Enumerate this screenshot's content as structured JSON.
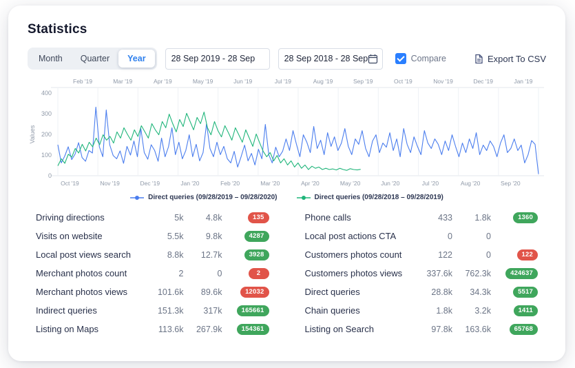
{
  "page": {
    "title": "Statistics"
  },
  "toolbar": {
    "period_tabs": [
      {
        "label": "Month",
        "selected": false
      },
      {
        "label": "Quarter",
        "selected": false
      },
      {
        "label": "Year",
        "selected": true
      }
    ],
    "date_range_primary": "28 Sep 2019 - 28 Sep",
    "date_range_compare": "28 Sep 2018 - 28 Sep",
    "compare_label": "Compare",
    "compare_checked": true,
    "export_label": "Export To CSV"
  },
  "colors": {
    "accent_blue": "#2f80ed",
    "series_current": "#4a7dee",
    "series_previous": "#1fb57a",
    "badge_positive": "#3fa65c",
    "badge_negative": "#e15449"
  },
  "chart_data": {
    "type": "line",
    "title": "",
    "xlabel": "",
    "ylabel": "Values",
    "ylim": [
      0,
      400
    ],
    "yticks": [
      0,
      100,
      200,
      300,
      400
    ],
    "grid": true,
    "legend_position": "bottom",
    "top_axis_labels": [
      "Feb '19",
      "Mar '19",
      "Apr '19",
      "May '19",
      "Jun '19",
      "Jul '19",
      "Aug '19",
      "Sep '19",
      "Oct '19",
      "Nov '19",
      "Dec '19",
      "Jan '19"
    ],
    "bottom_axis_labels": [
      "Oct '19",
      "Nov '19",
      "Dec '19",
      "Jan '20",
      "Feb '20",
      "Mar '20",
      "Apr '20",
      "May '20",
      "Jun '20",
      "Jul '20",
      "Aug '20",
      "Sep '20"
    ],
    "series": [
      {
        "name": "Direct queries (09/28/2019 – 09/28/2020)",
        "color": "#4a7dee",
        "span": 1.0,
        "values": [
          150,
          62,
          95,
          140,
          78,
          105,
          160,
          88,
          70,
          122,
          110,
          332,
          140,
          92,
          318,
          150,
          98,
          82,
          120,
          60,
          142,
          100,
          168,
          92,
          228,
          112,
          80,
          150,
          122,
          70,
          182,
          92,
          140,
          232,
          102,
          162,
          82,
          122,
          198,
          92,
          152,
          72,
          112,
          252,
          132,
          92,
          162,
          102,
          142,
          82,
          62,
          118,
          42,
          92,
          148,
          72,
          108,
          52,
          128,
          82,
          248,
          102,
          62,
          138,
          92,
          118,
          178,
          122,
          218,
          152,
          92,
          198,
          162,
          112,
          238,
          132,
          172,
          102,
          208,
          142,
          188,
          122,
          158,
          228,
          142,
          102,
          178,
          152,
          218,
          132,
          92,
          168,
          198,
          112,
          158,
          138,
          208,
          122,
          178,
          92,
          228,
          152,
          112,
          188,
          142,
          102,
          218,
          158,
          132,
          178,
          152,
          102,
          168,
          122,
          198,
          142,
          92,
          158,
          112,
          178,
          132,
          208,
          102,
          148,
          122,
          168,
          142,
          92,
          158,
          198,
          112,
          132,
          178,
          122,
          148,
          62,
          102,
          170,
          152,
          8
        ]
      },
      {
        "name": "Direct queries (09/28/2018 – 09/28/2019)",
        "color": "#1fb57a",
        "span": 0.63,
        "values": [
          48,
          82,
          60,
          104,
          90,
          132,
          110,
          152,
          120,
          162,
          140,
          182,
          150,
          198,
          172,
          190,
          158,
          212,
          182,
          232,
          200,
          172,
          222,
          190,
          242,
          212,
          182,
          252,
          222,
          198,
          262,
          232,
          298,
          252,
          212,
          272,
          238,
          302,
          262,
          222,
          282,
          252,
          308,
          232,
          198,
          262,
          218,
          188,
          242,
          208,
          172,
          232,
          198,
          162,
          222,
          182,
          142,
          202,
          158,
          118,
          92,
          112,
          72,
          98,
          62,
          82,
          52,
          72,
          42,
          62,
          36,
          52,
          30,
          46,
          36,
          42,
          30,
          36,
          30,
          33,
          28,
          36,
          30,
          26,
          34,
          30,
          28,
          31
        ]
      }
    ]
  },
  "stats": {
    "rows_left": [
      {
        "label": "Driving directions",
        "current": "5k",
        "compare": "4.8k",
        "delta": "135",
        "trend": "down"
      },
      {
        "label": "Visits on website",
        "current": "5.5k",
        "compare": "9.8k",
        "delta": "4287",
        "trend": "up"
      },
      {
        "label": "Local post views search",
        "current": "8.8k",
        "compare": "12.7k",
        "delta": "3928",
        "trend": "up"
      },
      {
        "label": "Merchant photos count",
        "current": "2",
        "compare": "0",
        "delta": "2",
        "trend": "down"
      },
      {
        "label": "Merchant photos views",
        "current": "101.6k",
        "compare": "89.6k",
        "delta": "12032",
        "trend": "down"
      },
      {
        "label": "Indirect queries",
        "current": "151.3k",
        "compare": "317k",
        "delta": "165661",
        "trend": "up"
      },
      {
        "label": "Listing on Maps",
        "current": "113.6k",
        "compare": "267.9k",
        "delta": "154361",
        "trend": "up"
      }
    ],
    "rows_right": [
      {
        "label": "Phone calls",
        "current": "433",
        "compare": "1.8k",
        "delta": "1360",
        "trend": "up"
      },
      {
        "label": "Local post actions CTA",
        "current": "0",
        "compare": "0",
        "delta": "",
        "trend": ""
      },
      {
        "label": "Customers photos count",
        "current": "122",
        "compare": "0",
        "delta": "122",
        "trend": "down"
      },
      {
        "label": "Customers photos views",
        "current": "337.6k",
        "compare": "762.3k",
        "delta": "424637",
        "trend": "up"
      },
      {
        "label": "Direct queries",
        "current": "28.8k",
        "compare": "34.3k",
        "delta": "5517",
        "trend": "up"
      },
      {
        "label": "Chain queries",
        "current": "1.8k",
        "compare": "3.2k",
        "delta": "1411",
        "trend": "up"
      },
      {
        "label": "Listing on Search",
        "current": "97.8k",
        "compare": "163.6k",
        "delta": "65768",
        "trend": "up"
      }
    ]
  }
}
